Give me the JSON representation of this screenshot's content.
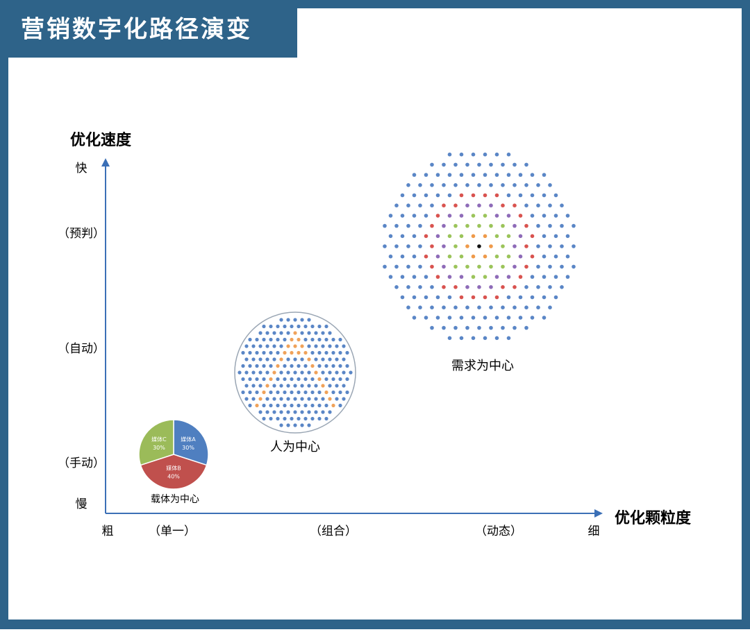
{
  "header": {
    "title": "营销数字化路径演变"
  },
  "y_axis": {
    "title": "优化速度",
    "labels": [
      "快",
      "（预判）",
      "（自动）",
      "（手动）",
      "慢"
    ]
  },
  "x_axis": {
    "title": "优化颗粒度",
    "labels": [
      "粗",
      "（单一）",
      "（组合）",
      "（动态）",
      "细"
    ]
  },
  "stages": [
    {
      "label": "载体为中心"
    },
    {
      "label": "人为中心"
    },
    {
      "label": "需求为中心"
    }
  ],
  "pie": {
    "categories": [
      "媒体A",
      "媒体B",
      "媒体C"
    ],
    "values": [
      30,
      40,
      30
    ],
    "value_labels": [
      "30%",
      "40%",
      "30%"
    ],
    "colors": [
      "#4f7fc0",
      "#c0504d",
      "#9bbb59"
    ]
  }
}
